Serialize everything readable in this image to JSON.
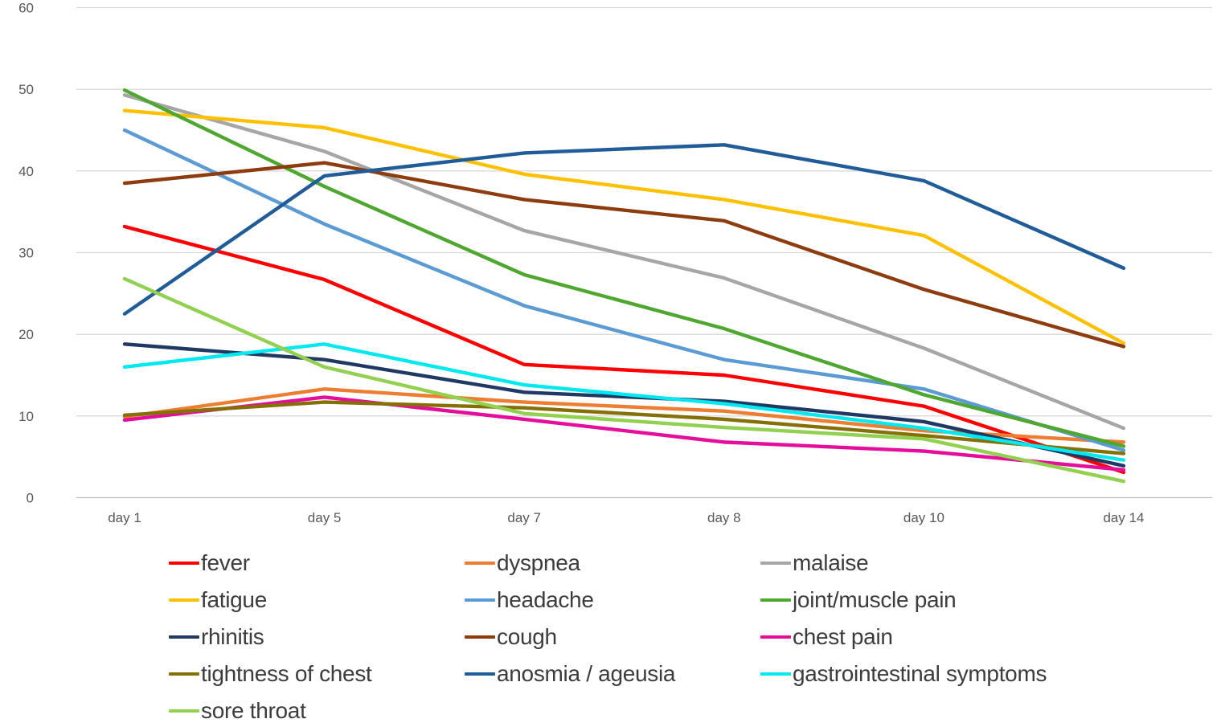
{
  "chart_data": {
    "type": "line",
    "title": "",
    "categories": [
      "day 1",
      "day 5",
      "day 7",
      "day 8",
      "day 10",
      "day 14"
    ],
    "series": [
      {
        "name": "fever",
        "color": "#FF0000",
        "values": [
          33.2,
          26.7,
          16.3,
          15.0,
          11.2,
          3.1
        ]
      },
      {
        "name": "dyspnea",
        "color": "#ED7D31",
        "values": [
          9.9,
          13.3,
          11.7,
          10.6,
          8.2,
          6.8
        ]
      },
      {
        "name": "malaise",
        "color": "#A6A6A6",
        "values": [
          49.3,
          42.4,
          32.7,
          26.9,
          18.3,
          8.5
        ]
      },
      {
        "name": "fatigue",
        "color": "#FFC000",
        "values": [
          47.4,
          45.3,
          39.6,
          36.5,
          32.1,
          18.9
        ]
      },
      {
        "name": "headache",
        "color": "#5B9BD5",
        "values": [
          45.0,
          33.5,
          23.5,
          16.9,
          13.3,
          5.8
        ]
      },
      {
        "name": "joint/muscle pain",
        "color": "#4EA72E",
        "values": [
          49.9,
          38.1,
          27.3,
          20.7,
          12.6,
          6.3
        ]
      },
      {
        "name": "rhinitis",
        "color": "#1F3864",
        "values": [
          18.8,
          16.9,
          12.9,
          11.8,
          9.3,
          3.9
        ]
      },
      {
        "name": "cough",
        "color": "#8E3B0E",
        "values": [
          38.5,
          41.0,
          36.5,
          33.9,
          25.5,
          18.5
        ]
      },
      {
        "name": "chest pain",
        "color": "#E50D9B",
        "values": [
          9.5,
          12.3,
          9.6,
          6.8,
          5.7,
          3.4
        ]
      },
      {
        "name": "tightness of chest",
        "color": "#857006",
        "values": [
          10.1,
          11.7,
          11.0,
          9.6,
          7.6,
          5.4
        ]
      },
      {
        "name": "anosmia / ageusia",
        "color": "#1F5C99",
        "values": [
          22.5,
          39.4,
          42.2,
          43.2,
          38.8,
          28.1
        ]
      },
      {
        "name": "gastrointestinal symptoms",
        "color": "#00E8F0",
        "values": [
          16.0,
          18.8,
          13.8,
          11.5,
          8.5,
          4.6
        ]
      },
      {
        "name": "sore throat",
        "color": "#92D050",
        "values": [
          26.8,
          16.0,
          10.3,
          8.6,
          7.2,
          2.0
        ]
      }
    ],
    "xlabel": "",
    "ylabel": "",
    "ylim": [
      0,
      60
    ],
    "yticks": [
      0,
      10,
      20,
      30,
      40,
      50,
      60
    ],
    "grid": true,
    "legend_position": "bottom",
    "gridline_color": "#D9D9D9",
    "axis_line_color": "#BFBFBF",
    "tick_label_color": "#595959"
  }
}
